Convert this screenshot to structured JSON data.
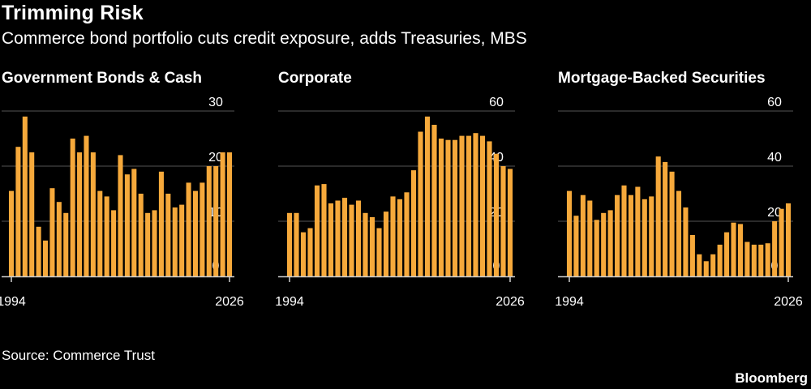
{
  "header": {
    "title": "Trimming Risk",
    "subtitle": "Commerce bond portfolio cuts credit exposure, adds Treasuries, MBS"
  },
  "footer": {
    "source": "Source: Commerce Trust",
    "brand": "Bloomberg"
  },
  "colors": {
    "background": "#000000",
    "bar": "#f6a93b",
    "grid": "#555555",
    "axis": "#cfcfcf",
    "text": "#ffffff"
  },
  "chart_data": [
    {
      "type": "bar",
      "title": "Government Bonds & Cash",
      "x": [
        1994,
        1995,
        1996,
        1997,
        1998,
        1999,
        2000,
        2001,
        2002,
        2003,
        2004,
        2005,
        2006,
        2007,
        2008,
        2009,
        2010,
        2011,
        2012,
        2013,
        2014,
        2015,
        2016,
        2017,
        2018,
        2019,
        2020,
        2021,
        2022,
        2023,
        2024,
        2025,
        2026
      ],
      "values": [
        15.5,
        23.5,
        29,
        22.5,
        9,
        6.5,
        16,
        13.5,
        11.5,
        25,
        22.5,
        25.5,
        22.5,
        15.5,
        14.5,
        12,
        22,
        18.5,
        19.5,
        15,
        11.5,
        12,
        19,
        15,
        12.5,
        13,
        17,
        15.5,
        17,
        20,
        20,
        22.5,
        22.5
      ],
      "xticks": [
        "1994",
        "2026"
      ],
      "ylim": [
        0,
        30
      ],
      "yticks": [
        0,
        10,
        20,
        30
      ],
      "grid": true
    },
    {
      "type": "bar",
      "title": "Corporate",
      "x": [
        1994,
        1995,
        1996,
        1997,
        1998,
        1999,
        2000,
        2001,
        2002,
        2003,
        2004,
        2005,
        2006,
        2007,
        2008,
        2009,
        2010,
        2011,
        2012,
        2013,
        2014,
        2015,
        2016,
        2017,
        2018,
        2019,
        2020,
        2021,
        2022,
        2023,
        2024,
        2025,
        2026
      ],
      "values": [
        23,
        23,
        16,
        17.5,
        33,
        33.5,
        26.5,
        27.5,
        28.5,
        26,
        27.5,
        23,
        21.5,
        17.5,
        23.5,
        29,
        28,
        30.5,
        38.5,
        52.5,
        58,
        55,
        50,
        49.5,
        49.5,
        51,
        51,
        52,
        51,
        49,
        44.5,
        40,
        39
      ],
      "xticks": [
        "1994",
        "2026"
      ],
      "ylim": [
        0,
        60
      ],
      "yticks": [
        0,
        20,
        40,
        60
      ],
      "grid": true
    },
    {
      "type": "bar",
      "title": "Mortgage-Backed Securities",
      "x": [
        1994,
        1995,
        1996,
        1997,
        1998,
        1999,
        2000,
        2001,
        2002,
        2003,
        2004,
        2005,
        2006,
        2007,
        2008,
        2009,
        2010,
        2011,
        2012,
        2013,
        2014,
        2015,
        2016,
        2017,
        2018,
        2019,
        2020,
        2021,
        2022,
        2023,
        2024,
        2025,
        2026
      ],
      "values": [
        31,
        22,
        29.5,
        27.5,
        20.5,
        23,
        24,
        29.5,
        33,
        29.5,
        32.5,
        28,
        29,
        43.5,
        41.5,
        38,
        31,
        25,
        15,
        8,
        5.5,
        8,
        11.5,
        16,
        19.5,
        19,
        12.5,
        11.5,
        11.5,
        12,
        20,
        24.5,
        26.5
      ],
      "xticks": [
        "1994",
        "2026"
      ],
      "ylim": [
        0,
        60
      ],
      "yticks": [
        0,
        20,
        40,
        60
      ],
      "grid": true
    }
  ]
}
